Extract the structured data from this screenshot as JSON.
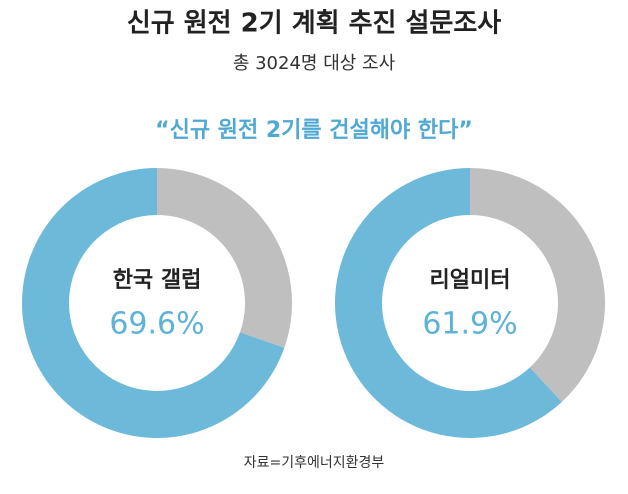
{
  "title": "신규 원전 2기 계획 추진 설문조사",
  "subtitle": "총 3024명 대상 조사",
  "headline": "“신규 원전 2기를 건설해야 한다”",
  "source": "자료=기후에너지환경부",
  "chart_data": [
    {
      "type": "donut",
      "title": "한국 갤럽",
      "values": [
        69.6,
        30.4
      ],
      "value_labels": [
        "69.6%",
        null
      ],
      "colors": [
        "#6cb9d9",
        "#bfbfbf"
      ]
    },
    {
      "type": "donut",
      "title": "리얼미터",
      "values": [
        61.9,
        38.1
      ],
      "value_labels": [
        "61.9%",
        null
      ],
      "colors": [
        "#6cb9d9",
        "#bfbfbf"
      ]
    }
  ]
}
